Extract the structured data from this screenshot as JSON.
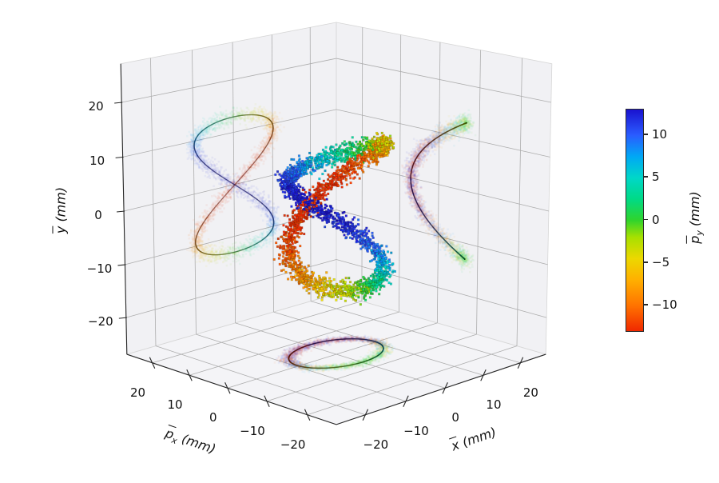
{
  "chart_data": {
    "type": "scatter3d",
    "title": "",
    "description": "3D scatter of a noisy closed phase-space curve (figure-eight) with translucent point-cloud projections on the three panes",
    "axes": {
      "x": {
        "label_base": "x",
        "label_overline": true,
        "label_sub": "",
        "label_unit": " (mm)",
        "ticks": [
          -20,
          -10,
          0,
          10,
          20
        ],
        "range": [
          -27,
          27
        ]
      },
      "px": {
        "label_base": "p",
        "label_overline": true,
        "label_sub": "x",
        "label_unit": " (mm)",
        "ticks": [
          20,
          10,
          0,
          -10,
          -20
        ],
        "range": [
          -27,
          27
        ]
      },
      "y": {
        "label_base": "y",
        "label_overline": true,
        "label_sub": "",
        "label_unit": " (mm)",
        "ticks": [
          -20,
          -10,
          0,
          10,
          20
        ],
        "range": [
          -27,
          27
        ]
      }
    },
    "colorbar": {
      "label_base": "p",
      "label_overline": true,
      "label_sub": "y",
      "label_unit": " (mm)",
      "ticks": [
        10,
        5,
        0,
        -5,
        -10
      ],
      "range": [
        -13,
        13
      ],
      "stops": [
        {
          "v": -13,
          "c": "#f02800"
        },
        {
          "v": -10,
          "c": "#ff7300"
        },
        {
          "v": -7,
          "c": "#ffb000"
        },
        {
          "v": -4.5,
          "c": "#ecd800"
        },
        {
          "v": -2,
          "c": "#a8e000"
        },
        {
          "v": 0,
          "c": "#30d42c"
        },
        {
          "v": 2.5,
          "c": "#00da86"
        },
        {
          "v": 5,
          "c": "#00d7c8"
        },
        {
          "v": 7.5,
          "c": "#00a8f5"
        },
        {
          "v": 10,
          "c": "#2a5cff"
        },
        {
          "v": 13,
          "c": "#1a12cf"
        }
      ]
    },
    "series": {
      "name": "phase-space-points",
      "n_points": 3200,
      "noise_sigma": 0.8,
      "color_by": "py",
      "parametric": {
        "x": "-10*sin(2t)",
        "px": "7*cos(2t)",
        "y": "13*sin(t)",
        "py": "13*cos(t)",
        "t_range": [
          0,
          6.2832
        ]
      },
      "amplitudes": {
        "x": 10,
        "px": 7,
        "y": 13,
        "py": 13
      },
      "curve_samples": [
        {
          "t": 0.0,
          "x": 0.0,
          "px": 7.0,
          "y": 0.0,
          "py": 13.0
        },
        {
          "t": 0.393,
          "x": -7.07,
          "px": 4.95,
          "y": 4.97,
          "py": 12.01
        },
        {
          "t": 0.785,
          "x": -10.0,
          "px": 0.0,
          "y": 9.19,
          "py": 9.19
        },
        {
          "t": 1.178,
          "x": -7.07,
          "px": -4.95,
          "y": 12.01,
          "py": 4.97
        },
        {
          "t": 1.571,
          "x": 0.0,
          "px": -7.0,
          "y": 13.0,
          "py": 0.0
        },
        {
          "t": 1.963,
          "x": 7.07,
          "px": -4.95,
          "y": 12.01,
          "py": -4.97
        },
        {
          "t": 2.356,
          "x": 10.0,
          "px": 0.0,
          "y": 9.19,
          "py": -9.19
        },
        {
          "t": 2.749,
          "x": 7.07,
          "px": 4.95,
          "y": 4.97,
          "py": -12.01
        },
        {
          "t": 3.142,
          "x": 0.0,
          "px": 7.0,
          "y": 0.0,
          "py": -13.0
        },
        {
          "t": 3.534,
          "x": -7.07,
          "px": 4.95,
          "y": -4.97,
          "py": -12.01
        },
        {
          "t": 3.927,
          "x": -10.0,
          "px": 0.0,
          "y": -9.19,
          "py": -9.19
        },
        {
          "t": 4.32,
          "x": -7.07,
          "px": -4.95,
          "y": -12.01,
          "py": -4.97
        },
        {
          "t": 4.712,
          "x": 0.0,
          "px": -7.0,
          "y": -13.0,
          "py": 0.0
        },
        {
          "t": 5.105,
          "x": 7.07,
          "px": -4.95,
          "y": -12.01,
          "py": 4.97
        },
        {
          "t": 5.498,
          "x": 10.0,
          "px": 0.0,
          "y": -9.19,
          "py": 9.19
        },
        {
          "t": 5.89,
          "x": 7.07,
          "px": 4.95,
          "y": -4.97,
          "py": 12.01
        }
      ]
    },
    "projections": {
      "panes": [
        "x-max",
        "px-max",
        "z-min"
      ],
      "style": "translucent point clouds with dark core curve"
    },
    "view": {
      "elev": 15,
      "azim": -135,
      "dist": 9,
      "proj_type": "persp"
    },
    "grid": true,
    "colors": {
      "pane": "#f1f1f4",
      "pane_floor": "#f4f4f7",
      "grid": "#adadad",
      "edge": "#262626",
      "pane_outline": "#d6d6d6"
    }
  }
}
